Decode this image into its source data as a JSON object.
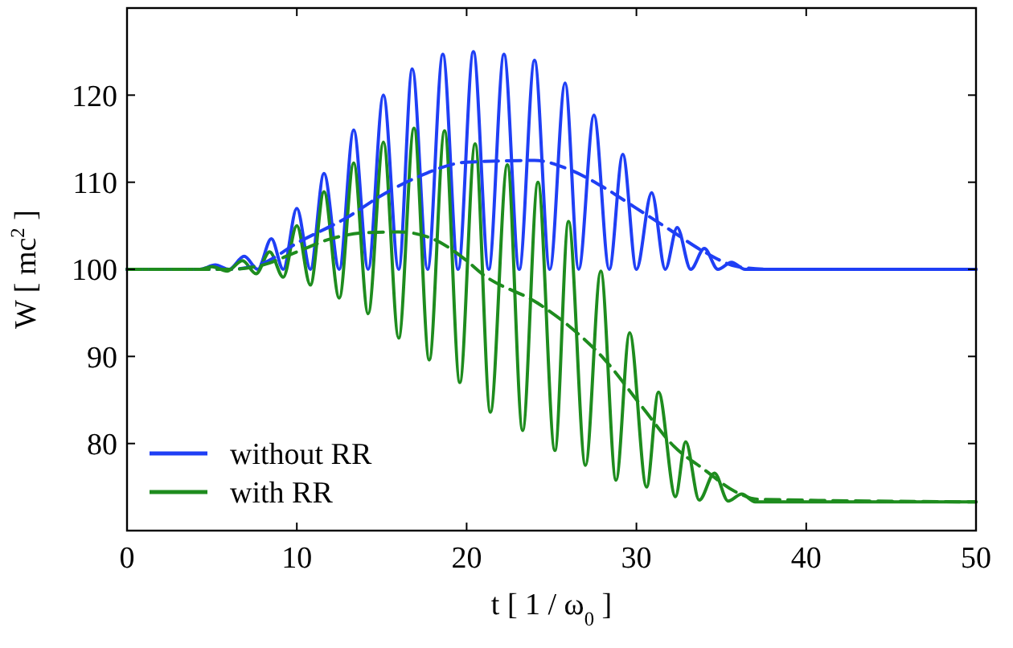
{
  "chart_data": {
    "type": "line",
    "xlabel": "t [ 1 / ω$_{0}$ ]",
    "ylabel": "W [ mc$^{2}$ ]",
    "xlim": [
      0,
      50
    ],
    "ylim": [
      70,
      130
    ],
    "xticks": [
      0,
      10,
      20,
      30,
      40,
      50
    ],
    "yticks": [
      80,
      90,
      100,
      110,
      120
    ],
    "grid": false,
    "legend": "bottom left",
    "marker": "none",
    "series": [
      {
        "name": "without RR",
        "color": "#1f3ff5",
        "line_style": "solid",
        "x": [
          0,
          4.3,
          5.2,
          6.0,
          6.9,
          7.7,
          8.5,
          9.2,
          10.0,
          10.8,
          11.6,
          12.5,
          13.35,
          14.2,
          15.1,
          16.0,
          16.8,
          17.7,
          18.6,
          19.5,
          20.4,
          21.3,
          22.2,
          23.1,
          24.0,
          24.9,
          25.8,
          26.6,
          27.5,
          28.4,
          29.2,
          30.0,
          30.9,
          31.7,
          32.4,
          33.2,
          34.0,
          34.8,
          35.6,
          36.4,
          50
        ],
        "values": [
          100,
          100,
          100.5,
          100,
          101.5,
          100,
          103.5,
          100,
          107,
          100,
          111,
          100,
          116,
          100,
          120,
          100,
          123,
          100,
          124.7,
          100,
          125,
          100,
          124.7,
          100,
          124,
          100,
          121.4,
          100,
          117.7,
          100,
          113.2,
          100,
          108.8,
          100,
          104.8,
          100,
          102.4,
          100,
          100.8,
          100,
          100
        ]
      },
      {
        "name": "with RR",
        "color": "#1e8c1e",
        "line_style": "solid",
        "x": [
          0,
          4.3,
          5.0,
          5.9,
          6.8,
          7.6,
          8.4,
          9.2,
          10.0,
          10.8,
          11.6,
          12.5,
          13.35,
          14.2,
          15.1,
          16.0,
          16.9,
          17.8,
          18.7,
          19.6,
          20.5,
          21.4,
          22.4,
          23.3,
          24.2,
          25.2,
          26.0,
          27.0,
          27.9,
          28.8,
          29.6,
          30.6,
          31.3,
          32.3,
          32.9,
          33.7,
          34.6,
          35.4,
          36.2,
          37,
          50
        ],
        "values": [
          100,
          100,
          100.3,
          99.8,
          101,
          99.5,
          102,
          99.1,
          105,
          98.2,
          108.9,
          96.7,
          112.2,
          94.9,
          114.6,
          92.1,
          116.2,
          89.6,
          115.9,
          87,
          114.4,
          83.6,
          112,
          81.5,
          110,
          79.2,
          105.5,
          77.5,
          99.8,
          75.8,
          92.7,
          75,
          85.9,
          73.9,
          80.2,
          73.5,
          76.6,
          73.4,
          74.2,
          73.3,
          73.3
        ]
      },
      {
        "color": "#1f3ff5",
        "line_style": "dashed",
        "x": [
          0,
          6,
          8,
          10,
          13,
          15,
          17,
          20,
          24,
          26,
          28,
          30,
          32,
          34,
          36,
          38,
          50
        ],
        "values": [
          100,
          100,
          100.7,
          103,
          106,
          108.5,
          110.5,
          112.3,
          112.5,
          111.5,
          109.5,
          107,
          104.5,
          102,
          100.3,
          100,
          100
        ]
      },
      {
        "color": "#1e8c1e",
        "line_style": "dashed",
        "x": [
          0,
          6,
          8,
          10,
          12,
          14,
          16,
          18,
          20,
          20.9,
          24.2,
          25.9,
          28.1,
          30.3,
          32.2,
          34,
          35.8,
          37.2,
          50
        ],
        "values": [
          100,
          100,
          100.5,
          102,
          103.5,
          104.2,
          104.3,
          103.5,
          101,
          99.5,
          96.1,
          93.7,
          89.7,
          84.3,
          79.7,
          77,
          74.5,
          73.6,
          73.3
        ]
      }
    ]
  }
}
